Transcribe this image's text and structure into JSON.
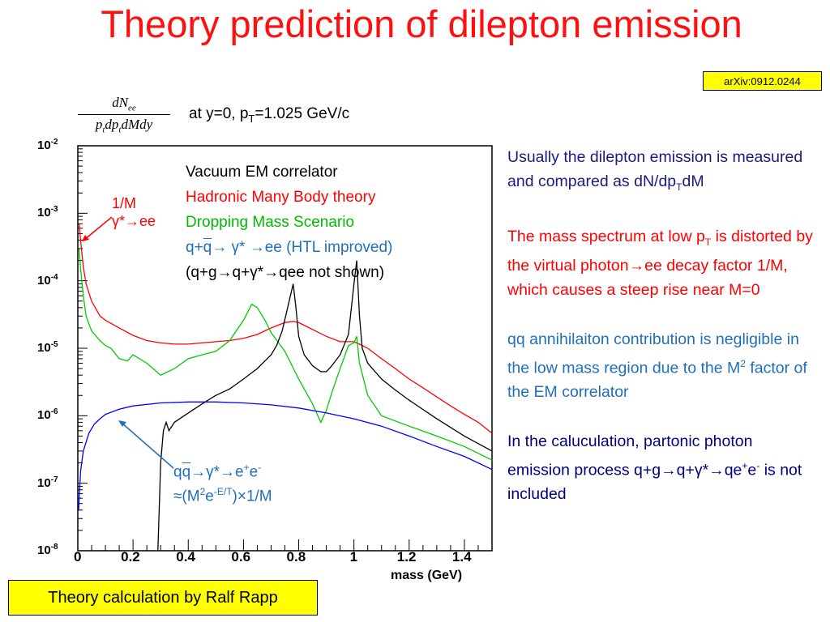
{
  "title": "Theory prediction of dilepton emission",
  "arxiv": "arXiv:0912.0244",
  "formula": {
    "numerator": "dN",
    "num_sub": "ee",
    "denominator": "p",
    "den_sub1": "t",
    "den_mid": "dp",
    "den_sub2": "t",
    "den_tail": "dMdy"
  },
  "condition": {
    "pre": "at y=0, p",
    "sub": "T",
    "post": "=1.025 GeV/c"
  },
  "legend": {
    "vacuum": "Vacuum EM correlator",
    "hadronic": "Hadronic Many Body theory",
    "dropping": "Dropping Mass Scenario",
    "qq_a": "q+",
    "qq_b": "q",
    "qq_c": "→ γ* →ee (HTL improved)",
    "qg": "(q+g→q+γ*→qee not shown)"
  },
  "notes": {
    "onem_line1": "1/M",
    "onem_line2": "γ*→ee",
    "qqbar_a": "q",
    "qqbar_b": "q",
    "qqbar_c": "→γ*→e",
    "qqbar_sup1": "+",
    "qqbar_d": "e",
    "qqbar_sup2": "-",
    "approx_a": "≈(M",
    "approx_sup1": "2",
    "approx_b": "e",
    "approx_sup2": "-E/T",
    "approx_c": ")×1/M"
  },
  "side": {
    "p1_a": "Usually the dilepton emission is measured and compared as dN/dp",
    "p1_sub": "T",
    "p1_b": "dM",
    "p2_a": "The mass spectrum at low p",
    "p2_sub": "T",
    "p2_b": " is distorted by the virtual photon→ee decay factor 1/M, which causes a steep rise near M=0",
    "p3_a": "qq annihilaiton contribution is negligible in the low mass region due to the M",
    "p3_sup": "2",
    "p3_b": " factor of the EM correlator",
    "p4_a": "In the caluculation, partonic photon emission process q+g→q+γ*→qe",
    "p4_sup1": "+",
    "p4_b": "e",
    "p4_sup2": "-",
    "p4_c": " is not included"
  },
  "credit": "Theory calculation by Ralf Rapp",
  "chart_data": {
    "type": "line",
    "xlabel": "mass (GeV)",
    "ylabel": "",
    "xlim": [
      0,
      1.5
    ],
    "ylim": [
      1e-08,
      0.01
    ],
    "yscale": "log",
    "x_ticks": [
      "0",
      "0.2",
      "0.4",
      "0.6",
      "0.8",
      "1",
      "1.2",
      "1.4"
    ],
    "y_ticks": [
      {
        "base": "10",
        "exp": "-2",
        "v": 0.01
      },
      {
        "base": "10",
        "exp": "-3",
        "v": 0.001
      },
      {
        "base": "10",
        "exp": "-4",
        "v": 0.0001
      },
      {
        "base": "10",
        "exp": "-5",
        "v": 1e-05
      },
      {
        "base": "10",
        "exp": "-6",
        "v": 1e-06
      },
      {
        "base": "10",
        "exp": "-7",
        "v": 1e-07
      },
      {
        "base": "10",
        "exp": "-8",
        "v": 1e-08
      }
    ],
    "series": [
      {
        "color": "#ff0000",
        "x": [
          0.005,
          0.01,
          0.02,
          0.03,
          0.05,
          0.08,
          0.1,
          0.15,
          0.2,
          0.25,
          0.3,
          0.35,
          0.4,
          0.45,
          0.5,
          0.55,
          0.6,
          0.65,
          0.7,
          0.75,
          0.78,
          0.8,
          0.85,
          0.9,
          0.95,
          1.0,
          1.02,
          1.05,
          1.1,
          1.15,
          1.2,
          1.25,
          1.3,
          1.35,
          1.4,
          1.45,
          1.5
        ],
        "y": [
          0.0007,
          0.0004,
          0.00016,
          9e-05,
          5e-05,
          3e-05,
          2.6e-05,
          2e-05,
          1.55e-05,
          1.3e-05,
          1.2e-05,
          1.15e-05,
          1.15e-05,
          1.2e-05,
          1.25e-05,
          1.3e-05,
          1.4e-05,
          1.6e-05,
          2e-05,
          2.4e-05,
          2.5e-05,
          2.4e-05,
          1.9e-05,
          1.5e-05,
          1.25e-05,
          1.25e-05,
          1.15e-05,
          1e-05,
          7e-06,
          5e-06,
          3.5e-06,
          2.6e-06,
          1.9e-06,
          1.4e-06,
          1.05e-06,
          8e-07,
          5.5e-07
        ]
      },
      {
        "color": "#00cc00",
        "x": [
          0.005,
          0.01,
          0.02,
          0.03,
          0.05,
          0.08,
          0.1,
          0.12,
          0.15,
          0.18,
          0.2,
          0.25,
          0.3,
          0.35,
          0.4,
          0.45,
          0.5,
          0.55,
          0.6,
          0.63,
          0.65,
          0.68,
          0.7,
          0.75,
          0.8,
          0.85,
          0.88,
          0.9,
          0.92,
          0.95,
          0.98,
          1.0,
          1.01,
          1.02,
          1.05,
          1.1,
          1.2,
          1.3,
          1.4,
          1.5
        ],
        "y": [
          0.0003,
          0.00015,
          6e-05,
          3e-05,
          1.8e-05,
          1.3e-05,
          1.1e-05,
          1e-05,
          7e-06,
          6.5e-06,
          8e-06,
          6e-06,
          4e-06,
          5e-06,
          7e-06,
          8e-06,
          9e-06,
          1.3e-05,
          2.6e-05,
          4.5e-05,
          4e-05,
          2.5e-05,
          1.7e-05,
          9e-06,
          3.5e-06,
          1.5e-06,
          8e-07,
          1.2e-06,
          2.2e-06,
          5e-06,
          1.1e-05,
          1.2e-05,
          1.5e-05,
          6e-06,
          2e-06,
          1e-06,
          7e-07,
          5e-07,
          3.5e-07,
          2.2e-07
        ]
      },
      {
        "color": "#000000",
        "x": [
          0.29,
          0.3,
          0.31,
          0.32,
          0.33,
          0.35,
          0.4,
          0.45,
          0.5,
          0.55,
          0.6,
          0.65,
          0.7,
          0.72,
          0.74,
          0.76,
          0.77,
          0.78,
          0.79,
          0.8,
          0.82,
          0.85,
          0.88,
          0.9,
          0.92,
          0.95,
          0.98,
          1.0,
          1.01,
          1.02,
          1.03,
          1.05,
          1.1,
          1.15,
          1.2,
          1.3,
          1.4,
          1.5
        ],
        "y": [
          1e-08,
          2e-07,
          6e-07,
          8e-07,
          6e-07,
          8e-07,
          1.1e-06,
          1.5e-06,
          2e-06,
          2.5e-06,
          3.5e-06,
          5e-06,
          8e-06,
          1.1e-05,
          1.8e-05,
          4e-05,
          6e-05,
          9e-05,
          4e-05,
          1.5e-05,
          8e-06,
          5.5e-06,
          4.5e-06,
          4.5e-06,
          5.5e-06,
          8e-06,
          1.6e-05,
          9e-05,
          0.0002,
          3e-05,
          1e-05,
          6e-06,
          3.5e-06,
          2.4e-06,
          1.7e-06,
          9e-07,
          5e-07,
          3e-07
        ]
      },
      {
        "color": "#0000ff",
        "x": [
          0.003,
          0.01,
          0.02,
          0.04,
          0.06,
          0.08,
          0.1,
          0.15,
          0.2,
          0.3,
          0.4,
          0.5,
          0.6,
          0.7,
          0.8,
          0.9,
          1.0,
          1.1,
          1.2,
          1.3,
          1.4,
          1.5
        ],
        "y": [
          4e-08,
          1.5e-07,
          3e-07,
          5.5e-07,
          7.5e-07,
          9e-07,
          1.05e-06,
          1.25e-06,
          1.4e-06,
          1.55e-06,
          1.6e-06,
          1.6e-06,
          1.55e-06,
          1.45e-06,
          1.3e-06,
          1.1e-06,
          9e-07,
          7e-07,
          5e-07,
          3.5e-07,
          2.5e-07,
          1.6e-07
        ]
      }
    ]
  }
}
